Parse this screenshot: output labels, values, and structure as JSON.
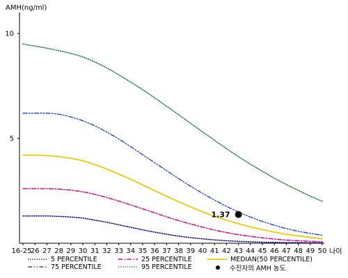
{
  "chart_data": {
    "type": "line",
    "ylabel": "AMH(ng/ml)",
    "xlabel": "나이",
    "ylim": [
      0,
      11
    ],
    "yticks": [
      5,
      10
    ],
    "categories": [
      "16-25",
      "26",
      "27",
      "28",
      "29",
      "30",
      "31",
      "32",
      "33",
      "34",
      "35",
      "36",
      "37",
      "38",
      "39",
      "40",
      "41",
      "42",
      "43",
      "44",
      "45",
      "46",
      "47",
      "48",
      "49",
      "50"
    ],
    "grid": false,
    "legend_position": "bottom",
    "series": [
      {
        "name": "5 PERCENTILE",
        "color": "#000080",
        "dash": "dotted",
        "values": [
          1.3,
          1.3,
          1.3,
          1.28,
          1.25,
          1.2,
          1.1,
          1.0,
          0.88,
          0.76,
          0.64,
          0.53,
          0.43,
          0.34,
          0.27,
          0.21,
          0.16,
          0.12,
          0.09,
          0.07,
          0.05,
          0.04,
          0.03,
          0.03,
          0.02,
          0.02
        ]
      },
      {
        "name": "25 PERCENTILE",
        "color": "#e0007a",
        "dash": "dashdot",
        "values": [
          2.6,
          2.6,
          2.6,
          2.58,
          2.53,
          2.45,
          2.33,
          2.18,
          2.01,
          1.83,
          1.64,
          1.45,
          1.26,
          1.08,
          0.92,
          0.77,
          0.63,
          0.51,
          0.41,
          0.33,
          0.26,
          0.2,
          0.15,
          0.12,
          0.09,
          0.07
        ]
      },
      {
        "name": "MEDIAN(50 PERCENTILE)",
        "color": "#f0c800",
        "dash": "solid",
        "values": [
          4.2,
          4.2,
          4.18,
          4.13,
          4.05,
          3.93,
          3.75,
          3.54,
          3.3,
          3.05,
          2.78,
          2.51,
          2.24,
          1.98,
          1.73,
          1.5,
          1.29,
          1.1,
          0.93,
          0.78,
          0.65,
          0.53,
          0.43,
          0.35,
          0.28,
          0.22
        ]
      },
      {
        "name": "75 PERCENTILE",
        "color": "#2b4fc2",
        "dash": "dashdotdot",
        "values": [
          6.2,
          6.2,
          6.2,
          6.15,
          6.02,
          5.84,
          5.6,
          5.3,
          4.97,
          4.6,
          4.22,
          3.84,
          3.46,
          3.08,
          2.72,
          2.38,
          2.06,
          1.76,
          1.49,
          1.25,
          1.04,
          0.86,
          0.7,
          0.57,
          0.47,
          0.38
        ]
      },
      {
        "name": "95 PERCENTILE",
        "color": "#1a7a3a",
        "dash": "dotted",
        "values": [
          9.5,
          9.4,
          9.3,
          9.18,
          9.05,
          8.88,
          8.64,
          8.36,
          8.03,
          7.68,
          7.32,
          6.93,
          6.53,
          6.13,
          5.72,
          5.31,
          4.91,
          4.51,
          4.13,
          3.77,
          3.43,
          3.1,
          2.8,
          2.52,
          2.25,
          2.0
        ]
      }
    ],
    "marker": {
      "name": "수진자의 AMH 농도",
      "x": "43",
      "y": 1.37,
      "label": "1.37",
      "color": "#000000"
    }
  }
}
